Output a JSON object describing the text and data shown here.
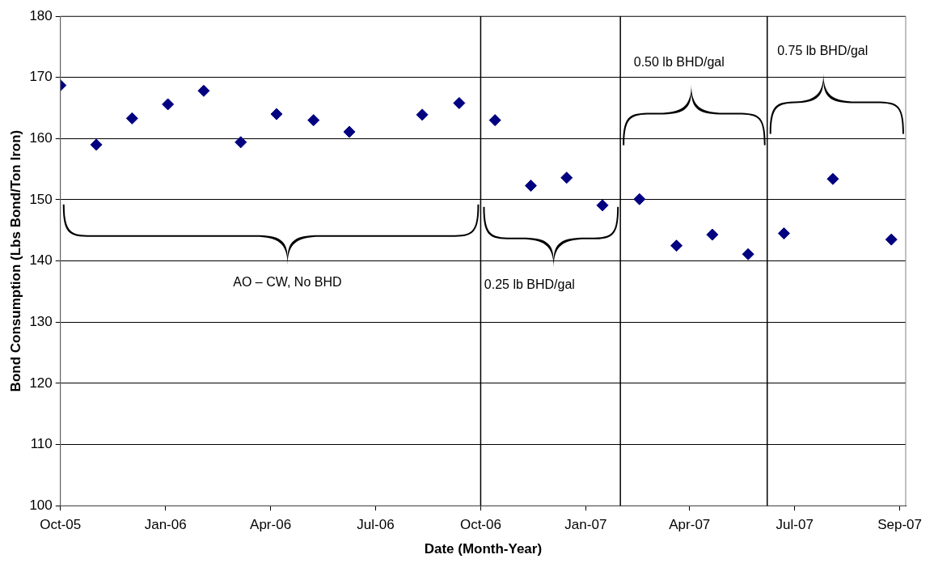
{
  "chart_data": {
    "type": "scatter",
    "xlabel": "Date (Month-Year)",
    "ylabel": "Bond Consumption (Lbs Bond/Ton Iron)",
    "x": [
      "2005-10-25",
      "2005-11-24",
      "2005-12-24",
      "2006-01-23",
      "2006-02-22",
      "2006-03-25",
      "2006-04-24",
      "2006-05-25",
      "2006-06-24",
      "2006-08-24",
      "2006-09-24",
      "2006-10-24",
      "2006-11-23",
      "2006-12-23",
      "2007-01-22",
      "2007-02-22",
      "2007-03-25",
      "2007-04-24",
      "2007-05-24",
      "2007-06-23",
      "2007-08-03",
      "2007-09-21"
    ],
    "series": [
      {
        "color": "#000080",
        "values": [
          168.7,
          159.0,
          163.3,
          165.6,
          167.8,
          159.4,
          164.0,
          163.0,
          161.1,
          163.9,
          165.8,
          163.0,
          152.3,
          153.6,
          149.1,
          150.1,
          142.5,
          144.3,
          141.1,
          144.5,
          153.4,
          143.5
        ]
      }
    ],
    "marker": "diamond",
    "xlim": [
      "2005-10-25",
      "2007-10-03"
    ],
    "xticks": [
      {
        "value": "2005-10-25",
        "label": "Oct-05"
      },
      {
        "value": "2006-01-21",
        "label": "Jan-06"
      },
      {
        "value": "2006-04-19",
        "label": "Apr-06"
      },
      {
        "value": "2006-07-16",
        "label": "Jul-06"
      },
      {
        "value": "2006-10-12",
        "label": "Oct-06"
      },
      {
        "value": "2007-01-08",
        "label": "Jan-07"
      },
      {
        "value": "2007-04-05",
        "label": "Apr-07"
      },
      {
        "value": "2007-07-02",
        "label": "Jul-07"
      },
      {
        "value": "2007-09-28",
        "label": "Sep-07"
      }
    ],
    "ylim": [
      100,
      180
    ],
    "yticks": [
      100,
      110,
      120,
      130,
      140,
      150,
      160,
      170,
      180
    ],
    "grid": "y",
    "legend": false,
    "ref_lines": [
      {
        "axis": "x",
        "value": "2006-10-12",
        "color": "#000000"
      },
      {
        "axis": "x",
        "value": "2007-02-06",
        "color": "#000000"
      },
      {
        "axis": "x",
        "value": "2007-06-09",
        "color": "#000000"
      }
    ],
    "annotations": [
      "AO – CW, No BHD",
      "0.25 lb BHD/gal",
      "0.50 lb BHD/gal",
      "0.75 lb BHD/gal"
    ]
  }
}
